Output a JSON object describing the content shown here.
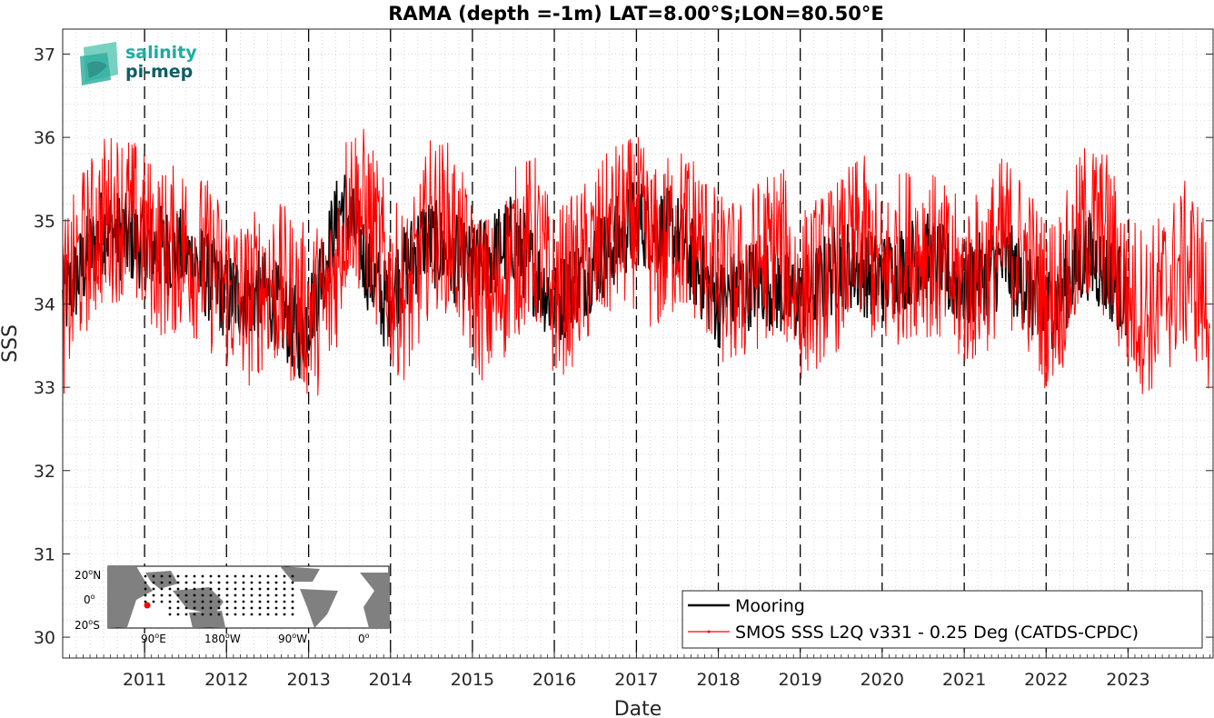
{
  "chart_data": {
    "type": "line",
    "title": "RAMA (depth =-1m) LAT=8.00°S;LON=80.50°E",
    "xlabel": "Date",
    "ylabel": "SSS",
    "xlim": [
      "2010-01-01",
      "2024-01-15"
    ],
    "ylim": [
      29.75,
      37.3
    ],
    "x_ticks": [
      "2011-01-01",
      "2012-01-01",
      "2013-01-01",
      "2014-01-01",
      "2015-01-01",
      "2016-01-01",
      "2017-01-01",
      "2018-01-01",
      "2019-01-01",
      "2020-01-01",
      "2021-01-01",
      "2022-01-01",
      "2023-01-01"
    ],
    "x_tick_labels": [
      "2011",
      "2012",
      "2013",
      "2014",
      "2015",
      "2016",
      "2017",
      "2018",
      "2019",
      "2020",
      "2021",
      "2022",
      "2023"
    ],
    "y_ticks": [
      30,
      31,
      32,
      33,
      34,
      35,
      36,
      37
    ],
    "grid": "dotted",
    "vertical_year_lines": "dashed",
    "legend_position": "bottom-right",
    "series": [
      {
        "name": "Mooring",
        "color": "#000000",
        "x": [
          "2010-01-01",
          "2010-07-01",
          "2011-01-01",
          "2011-07-01",
          "2012-01-01",
          "2012-07-01",
          "2012-12-01",
          "2013-06-01",
          "2013-12-01",
          "2014-06-01",
          "2015-01-01",
          "2015-07-01",
          "2016-01-01",
          "2016-07-01",
          "2017-01-01",
          "2017-07-01",
          "2018-01-01",
          "2018-07-01",
          "2019-01-01",
          "2019-07-01",
          "2020-01-01",
          "2020-07-01",
          "2021-01-01",
          "2021-07-01",
          "2022-01-01",
          "2022-07-01",
          "2023-01-01"
        ],
        "y": [
          34.0,
          34.9,
          34.7,
          34.6,
          34.1,
          34.1,
          33.6,
          35.2,
          34.0,
          34.8,
          34.4,
          34.8,
          34.0,
          34.5,
          35.0,
          34.8,
          34.0,
          34.3,
          34.0,
          34.5,
          34.3,
          34.6,
          34.2,
          34.5,
          33.9,
          34.6,
          34.1
        ]
      },
      {
        "name": "SMOS SSS L2Q v331 - 0.25 Deg (CATDS-CPDC)",
        "color": "#ff0000",
        "x": [
          "2010-01-01",
          "2010-04-01",
          "2010-07-01",
          "2010-10-01",
          "2011-01-01",
          "2011-04-01",
          "2011-07-01",
          "2011-10-01",
          "2012-01-01",
          "2012-04-01",
          "2012-07-01",
          "2012-10-01",
          "2013-01-01",
          "2013-04-01",
          "2013-07-01",
          "2013-10-01",
          "2014-01-01",
          "2014-04-01",
          "2014-07-01",
          "2014-10-01",
          "2015-01-01",
          "2015-04-01",
          "2015-07-01",
          "2015-10-01",
          "2016-01-01",
          "2016-04-01",
          "2016-07-01",
          "2016-10-01",
          "2017-01-01",
          "2017-04-01",
          "2017-07-01",
          "2017-10-01",
          "2018-01-01",
          "2018-04-01",
          "2018-07-01",
          "2018-10-01",
          "2019-01-01",
          "2019-04-01",
          "2019-07-01",
          "2019-10-01",
          "2020-01-01",
          "2020-04-01",
          "2020-07-01",
          "2020-10-01",
          "2021-01-01",
          "2021-04-01",
          "2021-07-01",
          "2021-10-01",
          "2022-01-01",
          "2022-04-01",
          "2022-07-01",
          "2022-10-01",
          "2023-01-01",
          "2023-04-01",
          "2023-07-01",
          "2023-10-01",
          "2024-01-01"
        ],
        "y": [
          33.9,
          34.6,
          35.0,
          35.1,
          34.8,
          34.6,
          34.7,
          34.5,
          34.2,
          34.0,
          34.3,
          34.1,
          33.9,
          34.0,
          35.3,
          35.0,
          34.2,
          34.1,
          35.0,
          34.9,
          34.2,
          34.0,
          34.6,
          34.8,
          34.1,
          34.3,
          34.6,
          34.9,
          35.0,
          34.6,
          34.9,
          34.8,
          34.3,
          34.2,
          34.5,
          34.7,
          34.1,
          34.3,
          34.5,
          34.8,
          34.3,
          34.6,
          34.7,
          34.4,
          34.2,
          34.4,
          34.8,
          34.5,
          34.0,
          34.3,
          35.0,
          34.8,
          34.1,
          33.9,
          34.2,
          34.5,
          33.9
        ]
      }
    ]
  },
  "logo": {
    "line1": "salinity",
    "line2": "pi-mep",
    "color1": "#1aae9f",
    "color2": "#0f5e67"
  },
  "inset_map": {
    "lat_labels": [
      "20",
      "0",
      "20"
    ],
    "lat_suffixes": [
      "N",
      "",
      "S"
    ],
    "lon_labels": [
      "90",
      "180",
      "90",
      "0"
    ],
    "lon_suffixes": [
      "E",
      "W",
      "W",
      ""
    ],
    "marker_color": "#ff0000",
    "land_color": "#808080"
  }
}
